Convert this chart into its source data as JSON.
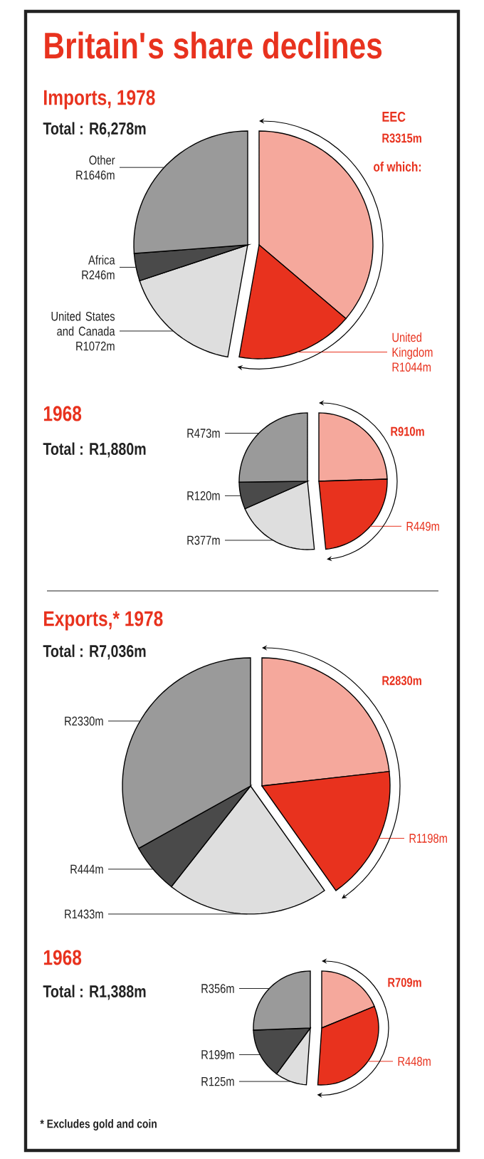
{
  "chart_data": [
    {
      "type": "pie",
      "title": "Britain's share declines",
      "subtitle": "Imports, 1978",
      "categories": [
        null,
        "United Kingdom",
        "United States and Canada",
        "Africa",
        "Other"
      ],
      "values": [
        36.2,
        16.6,
        17.1,
        3.9,
        26.2
      ],
      "colors": [
        "#f5a89c",
        "#e8321e",
        "#dedede",
        "#4a4a4a",
        "#9a9a9a"
      ],
      "value_labels": [
        null,
        "R1044m",
        "R1072m",
        "R246m",
        "R1646m"
      ],
      "annotations": [
        "Total : R6,278m",
        "EEC",
        "R3315m",
        "of which:"
      ]
    },
    {
      "type": "pie",
      "title": "1968",
      "subtitle": "Total : R1,880m",
      "categories": [
        null,
        null,
        null,
        null,
        null
      ],
      "values": [
        24.5,
        23.9,
        20.0,
        6.4,
        25.2
      ],
      "colors": [
        "#f5a89c",
        "#e8321e",
        "#dedede",
        "#4a4a4a",
        "#9a9a9a"
      ],
      "value_labels": [
        null,
        "R449m",
        "R377m",
        "R120m",
        "R473m"
      ],
      "annotations": [
        "R910m"
      ]
    },
    {
      "type": "pie",
      "title": "Exports,* 1978",
      "subtitle": "Total : R7,036m",
      "categories": [
        null,
        null,
        null,
        null,
        null
      ],
      "values": [
        23.2,
        17.0,
        20.4,
        6.3,
        33.1
      ],
      "colors": [
        "#f5a89c",
        "#e8321e",
        "#dedede",
        "#4a4a4a",
        "#9a9a9a"
      ],
      "value_labels": [
        null,
        "R1198m",
        "R1433m",
        "R444m",
        "R2330m"
      ],
      "annotations": [
        "R2830m"
      ]
    },
    {
      "type": "pie",
      "title": "1968",
      "subtitle": "Total : R1,388m",
      "categories": [
        null,
        null,
        null,
        null,
        null
      ],
      "values": [
        18.8,
        32.3,
        9.0,
        14.3,
        25.6
      ],
      "colors": [
        "#f5a89c",
        "#e8321e",
        "#dedede",
        "#4a4a4a",
        "#9a9a9a"
      ],
      "value_labels": [
        null,
        "R448m",
        "R125m",
        "R199m",
        "R356m"
      ],
      "annotations": [
        "R709m",
        "* Excludes gold and coin"
      ]
    }
  ]
}
